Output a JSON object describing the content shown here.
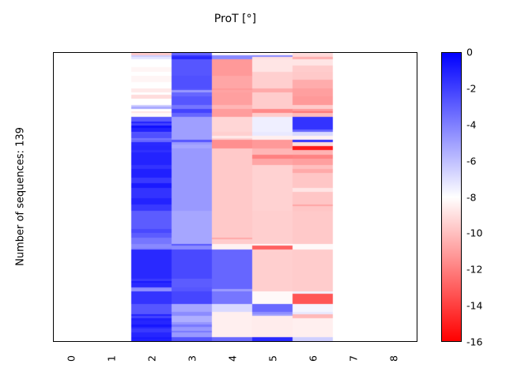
{
  "figure": {
    "title": "ProT [°]",
    "ylabel": "Number of sequences: 139",
    "x_tick_labels": [
      "0",
      "1",
      "2",
      "3",
      "4",
      "5",
      "6",
      "7",
      "8"
    ],
    "colorbar_tick_labels": [
      "0",
      "-2",
      "-4",
      "-6",
      "-8",
      "-10",
      "-12",
      "-14",
      "-16"
    ]
  },
  "chart_data": {
    "type": "heatmap",
    "title": "ProT [°]",
    "ylabel": "Number of sequences: 139",
    "n_rows": 139,
    "n_cols": 5,
    "columns_x_positions": [
      2,
      3,
      4,
      5,
      6
    ],
    "x_ticks": [
      0,
      1,
      2,
      3,
      4,
      5,
      6,
      7,
      8
    ],
    "xlim": [
      -0.45,
      8.6
    ],
    "grid": false,
    "colorbar": {
      "min": -16,
      "max": 0,
      "ticks": [
        0,
        -2,
        -4,
        -6,
        -8,
        -10,
        -12,
        -14,
        -16
      ],
      "colormap": "blue-white-red",
      "max_color": "#0000ff",
      "mid_color": "#ffffff",
      "min_color": "#ff0000",
      "position": "right"
    },
    "matrix": [
      [
        -9.7,
        -3.2,
        -8.2,
        -8.3,
        -9.1
      ],
      [
        -6.4,
        -1.6,
        -4.3,
        -4.2,
        -9.3
      ],
      [
        -7.2,
        -1.2,
        -4.3,
        -9.0,
        -10.5
      ],
      [
        -8.0,
        -2.7,
        -11.2,
        -8.8,
        -8.8
      ],
      [
        -8.0,
        -2.7,
        -11.2,
        -8.8,
        -8.8
      ],
      [
        -8.0,
        -2.7,
        -11.2,
        -8.8,
        -8.8
      ],
      [
        -8.0,
        -2.7,
        -11.2,
        -8.8,
        -9.6
      ],
      [
        -8.3,
        -2.7,
        -11.2,
        -8.8,
        -9.6
      ],
      [
        -8.3,
        -2.7,
        -11.2,
        -8.8,
        -9.6
      ],
      [
        -8.0,
        -2.7,
        -11.2,
        -9.5,
        -9.7
      ],
      [
        -8.0,
        -2.7,
        -11.2,
        -9.5,
        -9.7
      ],
      [
        -8.3,
        -2.5,
        -10.8,
        -9.5,
        -9.7
      ],
      [
        -8.3,
        -2.5,
        -10.8,
        -9.5,
        -9.7
      ],
      [
        -8.3,
        -2.5,
        -10.8,
        -9.5,
        -10.6
      ],
      [
        -8.0,
        -2.5,
        -10.8,
        -9.5,
        -10.6
      ],
      [
        -8.0,
        -2.5,
        -10.8,
        -9.5,
        -10.6
      ],
      [
        -8.0,
        -2.5,
        -10.8,
        -9.5,
        -10.6
      ],
      [
        -8.7,
        -2.7,
        -11.2,
        -10.7,
        -11.0
      ],
      [
        -8.7,
        -4.8,
        -10.9,
        -10.7,
        -11.0
      ],
      [
        -8.0,
        -3.2,
        -11.0,
        -9.6,
        -11.0
      ],
      [
        -9.1,
        -3.2,
        -11.0,
        -9.6,
        -11.0
      ],
      [
        -9.1,
        -2.7,
        -11.0,
        -9.6,
        -11.2
      ],
      [
        -8.0,
        -2.7,
        -11.0,
        -9.6,
        -11.2
      ],
      [
        -8.0,
        -2.7,
        -11.0,
        -9.6,
        -11.2
      ],
      [
        -8.0,
        -2.7,
        -11.0,
        -9.6,
        -11.2
      ],
      [
        -6.4,
        -3.7,
        -10.3,
        -9.6,
        -9.6
      ],
      [
        -5.3,
        -3.7,
        -10.3,
        -9.6,
        -9.6
      ],
      [
        -8.0,
        -2.1,
        -11.1,
        -11.7,
        -11.2
      ],
      [
        -8.8,
        -2.1,
        -11.1,
        -11.7,
        -12.3
      ],
      [
        -8.2,
        -3.2,
        -11.1,
        -9.6,
        -10.1
      ],
      [
        -8.2,
        -3.2,
        -11.1,
        -9.6,
        -10.1
      ],
      [
        -2.8,
        -5.0,
        -9.3,
        -7.5,
        -1.6
      ],
      [
        -2.8,
        -5.0,
        -9.3,
        -7.5,
        -1.6
      ],
      [
        -1.1,
        -5.0,
        -9.3,
        -7.5,
        -1.6
      ],
      [
        -2.1,
        -5.0,
        -9.3,
        -7.5,
        -1.6
      ],
      [
        -0.5,
        -5.0,
        -9.3,
        -7.5,
        -1.6
      ],
      [
        -1.1,
        -5.0,
        -9.3,
        -7.5,
        -1.6
      ],
      [
        -1.1,
        -5.0,
        -9.3,
        -7.5,
        -3.2
      ],
      [
        -2.7,
        -5.0,
        -9.5,
        -7.3,
        -6.8
      ],
      [
        -2.5,
        -5.0,
        -9.5,
        -7.3,
        -6.8
      ],
      [
        -2.5,
        -5.0,
        -8.7,
        -8.5,
        -8.4
      ],
      [
        -3.7,
        -5.0,
        -9.5,
        -8.5,
        -8.4
      ],
      [
        -3.2,
        -2.7,
        -11.5,
        -11.2,
        -1.6
      ],
      [
        -1.3,
        -4.8,
        -11.5,
        -11.2,
        -9.1
      ],
      [
        -1.3,
        -5.2,
        -11.5,
        -11.2,
        -9.1
      ],
      [
        -1.2,
        -5.2,
        -11.5,
        -11.2,
        -15.2
      ],
      [
        -1.2,
        -4.8,
        -9.7,
        -10.3,
        -15.2
      ],
      [
        -1.5,
        -4.8,
        -9.7,
        -10.3,
        -10.4
      ],
      [
        -1.1,
        -4.8,
        -9.7,
        -10.3,
        -10.4
      ],
      [
        -1.1,
        -4.8,
        -9.7,
        -12.0,
        -11.9
      ],
      [
        -1.1,
        -4.8,
        -9.7,
        -12.0,
        -11.9
      ],
      [
        -1.1,
        -4.8,
        -9.7,
        -10.8,
        -11.0
      ],
      [
        -1.1,
        -4.8,
        -9.7,
        -10.8,
        -11.0
      ],
      [
        -1.1,
        -4.8,
        -9.7,
        -10.8,
        -11.0
      ],
      [
        -1.6,
        -4.8,
        -9.7,
        -9.4,
        -10.0
      ],
      [
        -1.6,
        -4.8,
        -9.7,
        -9.4,
        -10.0
      ],
      [
        -1.0,
        -4.8,
        -9.7,
        -9.4,
        -10.7
      ],
      [
        -1.0,
        -4.8,
        -9.7,
        -9.4,
        -10.7
      ],
      [
        -1.0,
        -4.8,
        -9.7,
        -9.4,
        -9.8
      ],
      [
        -1.0,
        -4.8,
        -9.7,
        -9.4,
        -9.8
      ],
      [
        -1.8,
        -4.8,
        -9.7,
        -9.4,
        -9.8
      ],
      [
        -1.8,
        -4.8,
        -9.7,
        -9.4,
        -9.8
      ],
      [
        -1.8,
        -4.8,
        -9.7,
        -9.4,
        -9.8
      ],
      [
        -0.8,
        -4.8,
        -9.7,
        -9.4,
        -9.8
      ],
      [
        -0.8,
        -4.8,
        -9.7,
        -9.4,
        -9.8
      ],
      [
        -1.6,
        -4.8,
        -9.7,
        -9.4,
        -8.8
      ],
      [
        -1.6,
        -4.8,
        -9.7,
        -9.4,
        -8.8
      ],
      [
        -1.6,
        -4.8,
        -9.7,
        -9.4,
        -9.8
      ],
      [
        -1.6,
        -4.8,
        -9.7,
        -9.4,
        -9.8
      ],
      [
        -1.6,
        -4.8,
        -9.7,
        -9.4,
        -9.8
      ],
      [
        -1.1,
        -4.8,
        -9.7,
        -9.4,
        -9.8
      ],
      [
        -1.1,
        -4.8,
        -9.7,
        -9.4,
        -9.8
      ],
      [
        -1.1,
        -4.8,
        -9.7,
        -9.4,
        -9.8
      ],
      [
        -1.8,
        -4.8,
        -9.7,
        -9.4,
        -10.8
      ],
      [
        -1.8,
        -4.8,
        -9.7,
        -9.4,
        -9.8
      ],
      [
        -1.8,
        -4.8,
        -9.7,
        -9.4,
        -9.8
      ],
      [
        -2.9,
        -5.2,
        -9.7,
        -9.5,
        -9.7
      ],
      [
        -2.9,
        -5.2,
        -9.7,
        -9.5,
        -9.7
      ],
      [
        -2.9,
        -5.2,
        -9.7,
        -9.5,
        -9.7
      ],
      [
        -2.9,
        -5.2,
        -9.7,
        -9.5,
        -9.7
      ],
      [
        -2.9,
        -5.2,
        -9.7,
        -9.5,
        -9.7
      ],
      [
        -2.9,
        -5.2,
        -9.7,
        -9.5,
        -9.7
      ],
      [
        -2.9,
        -5.2,
        -9.7,
        -9.5,
        -9.7
      ],
      [
        -2.9,
        -5.2,
        -9.7,
        -9.5,
        -9.7
      ],
      [
        -2.9,
        -5.2,
        -9.7,
        -9.5,
        -9.7
      ],
      [
        -2.3,
        -5.2,
        -9.7,
        -9.5,
        -9.7
      ],
      [
        -2.3,
        -5.2,
        -9.7,
        -9.5,
        -9.7
      ],
      [
        -2.9,
        -5.2,
        -9.7,
        -9.5,
        -9.7
      ],
      [
        -2.9,
        -5.2,
        -9.7,
        -9.5,
        -9.7
      ],
      [
        -3.7,
        -5.2,
        -10.7,
        -9.5,
        -9.7
      ],
      [
        -3.7,
        -5.2,
        -9.6,
        -9.5,
        -9.7
      ],
      [
        -3.7,
        -5.2,
        -9.6,
        -9.5,
        -9.7
      ],
      [
        -4.3,
        -2.8,
        -8.4,
        -8.2,
        -8.2
      ],
      [
        -4.3,
        -4.3,
        -8.4,
        -13.0,
        -8.2
      ],
      [
        -4.0,
        -4.3,
        -8.4,
        -13.0,
        -8.2
      ],
      [
        -1.3,
        -2.3,
        -3.2,
        -9.5,
        -9.6
      ],
      [
        -1.3,
        -2.3,
        -3.2,
        -9.5,
        -9.6
      ],
      [
        -1.3,
        -2.3,
        -3.2,
        -9.5,
        -9.6
      ],
      [
        -1.3,
        -2.3,
        -3.2,
        -9.5,
        -9.6
      ],
      [
        -1.3,
        -2.3,
        -3.2,
        -9.5,
        -9.6
      ],
      [
        -1.3,
        -2.3,
        -3.2,
        -9.5,
        -9.6
      ],
      [
        -1.3,
        -2.3,
        -3.2,
        -9.5,
        -9.6
      ],
      [
        -1.3,
        -2.3,
        -3.2,
        -9.5,
        -9.6
      ],
      [
        -1.3,
        -2.3,
        -3.2,
        -9.5,
        -9.6
      ],
      [
        -1.3,
        -2.3,
        -3.2,
        -9.5,
        -9.6
      ],
      [
        -1.3,
        -2.3,
        -3.2,
        -9.5,
        -9.6
      ],
      [
        -1.3,
        -2.3,
        -3.2,
        -9.5,
        -9.6
      ],
      [
        -1.3,
        -2.3,
        -3.2,
        -9.5,
        -9.6
      ],
      [
        -1.3,
        -2.3,
        -3.2,
        -9.5,
        -9.6
      ],
      [
        -1.8,
        -2.9,
        -3.2,
        -9.5,
        -9.6
      ],
      [
        -0.8,
        -2.9,
        -3.2,
        -9.5,
        -9.6
      ],
      [
        -1.3,
        -2.9,
        -3.2,
        -9.5,
        -9.6
      ],
      [
        -1.3,
        -2.9,
        -3.2,
        -9.5,
        -9.6
      ],
      [
        -4.3,
        -2.7,
        -3.2,
        -9.5,
        -9.6
      ],
      [
        -4.5,
        -2.7,
        -4.9,
        -9.5,
        -9.6
      ],
      [
        -1.6,
        -2.2,
        -3.7,
        -8.2,
        -7.6
      ],
      [
        -1.6,
        -2.2,
        -3.7,
        -8.2,
        -13.3
      ],
      [
        -1.6,
        -2.2,
        -3.7,
        -8.2,
        -13.3
      ],
      [
        -1.6,
        -2.2,
        -3.7,
        -8.2,
        -13.3
      ],
      [
        -1.6,
        -2.2,
        -3.7,
        -8.2,
        -13.3
      ],
      [
        -1.6,
        -2.2,
        -3.7,
        -8.2,
        -13.3
      ],
      [
        -2.7,
        -5.2,
        -6.8,
        -3.3,
        -7.7
      ],
      [
        -2.7,
        -5.2,
        -6.8,
        -3.3,
        -7.7
      ],
      [
        -2.7,
        -5.2,
        -6.8,
        -3.3,
        -7.7
      ],
      [
        -2.7,
        -5.2,
        -6.8,
        -3.3,
        -7.7
      ],
      [
        -2.7,
        -4.4,
        -8.5,
        -4.5,
        -7.3
      ],
      [
        -1.1,
        -4.4,
        -8.5,
        -5.1,
        -10.2
      ],
      [
        -2.1,
        -5.5,
        -8.5,
        -8.6,
        -10.2
      ],
      [
        -1.0,
        -5.5,
        -8.5,
        -8.6,
        -8.5
      ],
      [
        -1.2,
        -5.5,
        -8.5,
        -8.6,
        -8.5
      ],
      [
        -1.2,
        -4.7,
        -8.5,
        -8.6,
        -8.5
      ],
      [
        -0.7,
        -3.8,
        -8.5,
        -8.6,
        -8.5
      ],
      [
        -1.2,
        -4.7,
        -8.5,
        -8.6,
        -8.5
      ],
      [
        -1.8,
        -4.8,
        -8.5,
        -8.6,
        -8.5
      ],
      [
        -1.8,
        -3.8,
        -8.5,
        -8.6,
        -8.5
      ],
      [
        -1.2,
        -4.8,
        -8.5,
        -8.6,
        -8.5
      ],
      [
        -1.2,
        -4.8,
        -8.5,
        -8.6,
        -8.5
      ],
      [
        -0.8,
        -2.6,
        -3.3,
        -1.3,
        -6.5
      ],
      [
        -1.0,
        -2.6,
        -3.3,
        -1.3,
        -6.5
      ]
    ]
  }
}
